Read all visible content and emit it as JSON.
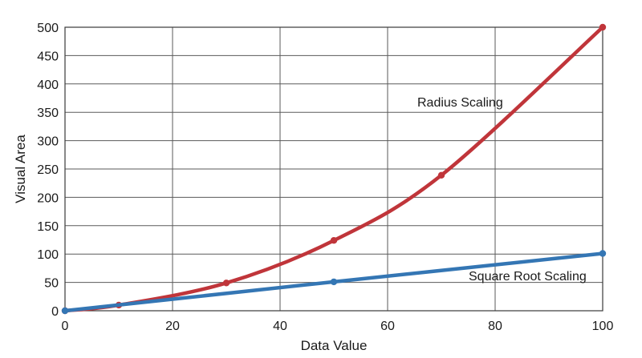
{
  "chart_data": {
    "type": "line",
    "xlabel": "Data Value",
    "ylabel": "Visual Area",
    "xlim": [
      0,
      100
    ],
    "ylim": [
      0,
      500
    ],
    "xticks": [
      "0",
      "20",
      "40",
      "60",
      "80",
      "100"
    ],
    "yticks": [
      "0",
      "50",
      "100",
      "150",
      "200",
      "250",
      "300",
      "350",
      "400",
      "450",
      "500"
    ],
    "grid": true,
    "series": [
      {
        "name": "Radius Scaling",
        "color": "#c0353a",
        "points": [
          [
            0,
            0
          ],
          [
            10,
            10
          ],
          [
            30,
            49
          ],
          [
            50,
            124
          ],
          [
            70,
            239
          ],
          [
            100,
            500
          ]
        ]
      },
      {
        "name": "Square Root Scaling",
        "color": "#3476b4",
        "points": [
          [
            0,
            0
          ],
          [
            50,
            51
          ],
          [
            100,
            101
          ]
        ]
      }
    ]
  }
}
